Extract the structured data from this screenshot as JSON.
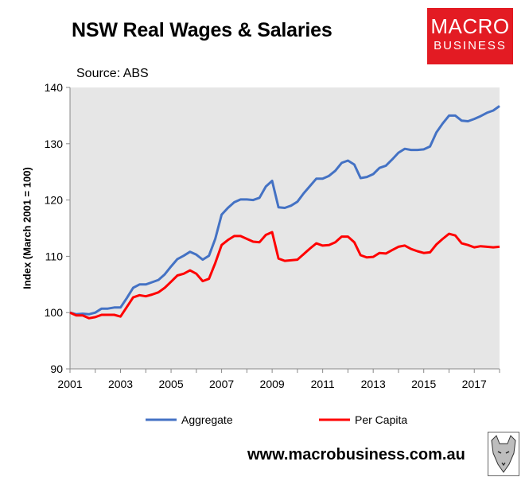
{
  "title": "NSW Real Wages & Salaries",
  "source": "Source: ABS",
  "logo": {
    "line1": "MACRO",
    "line2": "BUSINESS"
  },
  "footer": "www.macrobusiness.com.au",
  "chart_data": {
    "type": "line",
    "ylabel": "Index (March 2001 = 100)",
    "xlabel": "",
    "xlim": [
      2001,
      2018
    ],
    "ylim": [
      90,
      140
    ],
    "yticks": [
      90,
      100,
      110,
      120,
      130,
      140
    ],
    "xticks": [
      2001,
      2003,
      2005,
      2007,
      2009,
      2011,
      2013,
      2015,
      2017
    ],
    "grid": false,
    "plot_background": "#e6e6e6",
    "legend_position": "bottom",
    "x": [
      2001.0,
      2001.25,
      2001.5,
      2001.75,
      2002.0,
      2002.25,
      2002.5,
      2002.75,
      2003.0,
      2003.25,
      2003.5,
      2003.75,
      2004.0,
      2004.25,
      2004.5,
      2004.75,
      2005.0,
      2005.25,
      2005.5,
      2005.75,
      2006.0,
      2006.25,
      2006.5,
      2006.75,
      2007.0,
      2007.25,
      2007.5,
      2007.75,
      2008.0,
      2008.25,
      2008.5,
      2008.75,
      2009.0,
      2009.25,
      2009.5,
      2009.75,
      2010.0,
      2010.25,
      2010.5,
      2010.75,
      2011.0,
      2011.25,
      2011.5,
      2011.75,
      2012.0,
      2012.25,
      2012.5,
      2012.75,
      2013.0,
      2013.25,
      2013.5,
      2013.75,
      2014.0,
      2014.25,
      2014.5,
      2014.75,
      2015.0,
      2015.25,
      2015.5,
      2015.75,
      2016.0,
      2016.25,
      2016.5,
      2016.75,
      2017.0,
      2017.25,
      2017.5,
      2017.75,
      2018.0
    ],
    "series": [
      {
        "name": "Aggregate",
        "color": "#4472c4",
        "values": [
          100.0,
          99.7,
          99.8,
          99.7,
          100.0,
          100.7,
          100.7,
          100.9,
          100.9,
          102.6,
          104.4,
          105.0,
          105.0,
          105.4,
          105.8,
          106.8,
          108.2,
          109.5,
          110.1,
          110.8,
          110.3,
          109.4,
          110.1,
          113.1,
          117.4,
          118.6,
          119.6,
          120.1,
          120.1,
          120.0,
          120.4,
          122.4,
          123.4,
          118.7,
          118.6,
          119.0,
          119.7,
          121.2,
          122.5,
          123.8,
          123.8,
          124.3,
          125.2,
          126.6,
          127.0,
          126.3,
          123.9,
          124.1,
          124.6,
          125.7,
          126.1,
          127.2,
          128.4,
          129.1,
          128.9,
          128.9,
          129.0,
          129.5,
          132.0,
          133.6,
          135.0,
          135.0,
          134.1,
          134.0,
          134.4,
          134.9,
          135.5,
          135.9,
          136.7
        ]
      },
      {
        "name": "Per Capita",
        "color": "#ff0000",
        "values": [
          100.0,
          99.5,
          99.5,
          99.0,
          99.2,
          99.6,
          99.6,
          99.6,
          99.3,
          101.0,
          102.7,
          103.1,
          102.9,
          103.2,
          103.6,
          104.4,
          105.5,
          106.6,
          106.9,
          107.5,
          106.9,
          105.6,
          106.0,
          108.8,
          112.0,
          112.9,
          113.6,
          113.6,
          113.1,
          112.6,
          112.5,
          113.8,
          114.3,
          109.6,
          109.2,
          109.3,
          109.4,
          110.4,
          111.4,
          112.3,
          111.9,
          112.0,
          112.5,
          113.5,
          113.5,
          112.5,
          110.2,
          109.8,
          109.9,
          110.6,
          110.5,
          111.1,
          111.7,
          111.9,
          111.3,
          110.9,
          110.6,
          110.7,
          112.1,
          113.1,
          114.0,
          113.7,
          112.3,
          112.0,
          111.6,
          111.8,
          111.7,
          111.6,
          111.7
        ]
      }
    ]
  }
}
